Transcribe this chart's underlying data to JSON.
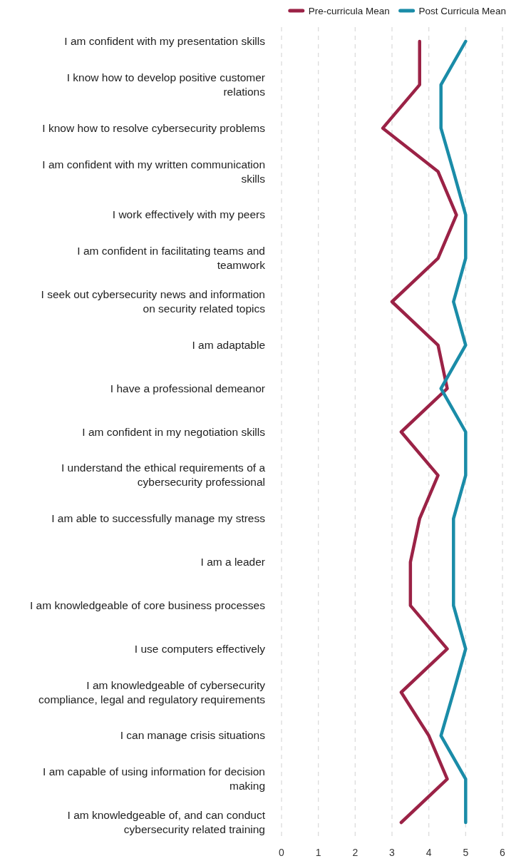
{
  "chart_data": {
    "type": "line",
    "orientation": "horizontal",
    "categories": [
      "I am confident with my presentation skills",
      "I know how to develop positive customer relations",
      "I know how to resolve cybersecurity problems",
      "I am confident with my written communication skills",
      "I work effectively with my peers",
      "I am confident in facilitating teams and teamwork",
      "I seek out cybersecurity news and information on security related topics",
      "I am adaptable",
      "I have a professional demeanor",
      "I am confident in my negotiation skills",
      "I understand the ethical requirements of a cybersecurity professional",
      "I am able to successfully manage my stress",
      "I am a leader",
      "I am knowledgeable of core business processes",
      "I use computers effectively",
      "I am knowledgeable of cybersecurity compliance, legal and regulatory requirements",
      "I can manage crisis situations",
      "I am capable of using information for decision making",
      "I am knowledgeable of, and can conduct cybersecurity related training"
    ],
    "series": [
      {
        "name": "Pre-curricula Mean",
        "color": "#9b2246",
        "values": [
          3.75,
          3.75,
          2.75,
          4.25,
          4.75,
          4.25,
          3,
          4.25,
          4.5,
          3.25,
          4.25,
          3.75,
          3.5,
          3.5,
          4.5,
          3.25,
          4,
          4.5,
          3.25
        ]
      },
      {
        "name": "Post Curricula Mean",
        "color": "#1a8ca8",
        "values": [
          5,
          4.33,
          4.33,
          4.67,
          5,
          5,
          4.67,
          5,
          4.33,
          5,
          5,
          4.67,
          4.67,
          4.67,
          5,
          4.67,
          4.33,
          5,
          5
        ]
      }
    ],
    "xlim": [
      0,
      6
    ],
    "xticks": [
      0,
      1,
      2,
      3,
      4,
      5,
      6
    ],
    "grid": "x",
    "legend": "top right",
    "marker": "none",
    "line_style": "solid"
  }
}
